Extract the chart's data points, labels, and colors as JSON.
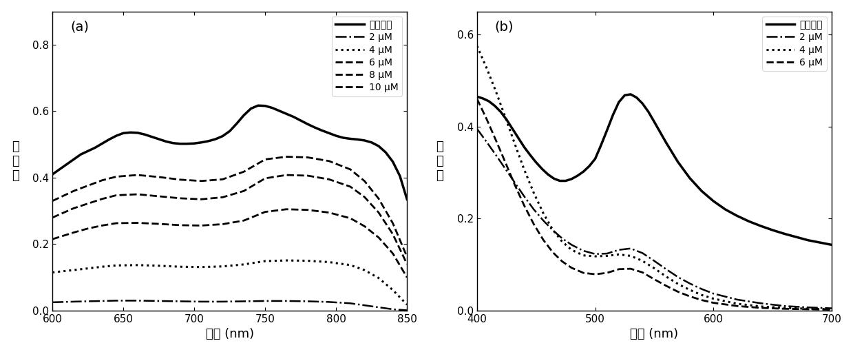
{
  "panel_a": {
    "xlabel": "波长 (nm)",
    "ylabel": "吸\n光\n值",
    "label": "(a)",
    "xlim": [
      600,
      850
    ],
    "ylim": [
      0.0,
      0.9
    ],
    "yticks": [
      0.0,
      0.2,
      0.4,
      0.6,
      0.8
    ],
    "xticks": [
      600,
      650,
      700,
      750,
      800,
      850
    ],
    "legend_labels": [
      "空白对照",
      "2 μM",
      "4 μM",
      "6 μM",
      "8 μM",
      "10 μM"
    ],
    "series": {
      "blank": {
        "x": [
          600,
          610,
          620,
          630,
          640,
          645,
          650,
          655,
          660,
          665,
          670,
          675,
          680,
          685,
          690,
          695,
          700,
          705,
          710,
          715,
          720,
          725,
          730,
          735,
          740,
          745,
          750,
          755,
          760,
          765,
          770,
          775,
          780,
          785,
          790,
          795,
          800,
          805,
          810,
          815,
          820,
          825,
          830,
          835,
          840,
          845,
          850
        ],
        "y": [
          0.41,
          0.44,
          0.47,
          0.49,
          0.515,
          0.526,
          0.534,
          0.536,
          0.535,
          0.53,
          0.523,
          0.516,
          0.509,
          0.504,
          0.502,
          0.502,
          0.503,
          0.506,
          0.51,
          0.516,
          0.525,
          0.54,
          0.563,
          0.588,
          0.608,
          0.617,
          0.616,
          0.61,
          0.601,
          0.592,
          0.583,
          0.572,
          0.561,
          0.551,
          0.542,
          0.534,
          0.526,
          0.52,
          0.517,
          0.515,
          0.512,
          0.506,
          0.495,
          0.476,
          0.448,
          0.405,
          0.335
        ],
        "linestyle": "solid",
        "linewidth": 2.5
      },
      "2uM": {
        "x": [
          600,
          615,
          625,
          635,
          645,
          660,
          675,
          690,
          705,
          720,
          735,
          750,
          765,
          780,
          795,
          810,
          820,
          830,
          840,
          850
        ],
        "y": [
          0.025,
          0.027,
          0.028,
          0.029,
          0.03,
          0.03,
          0.029,
          0.028,
          0.027,
          0.027,
          0.028,
          0.029,
          0.029,
          0.028,
          0.026,
          0.022,
          0.016,
          0.01,
          0.004,
          0.001
        ],
        "linestyle": "dashdot_fine",
        "linewidth": 1.8
      },
      "4uM": {
        "x": [
          600,
          615,
          625,
          635,
          645,
          660,
          675,
          690,
          705,
          720,
          735,
          750,
          765,
          780,
          795,
          810,
          820,
          830,
          840,
          850
        ],
        "y": [
          0.115,
          0.122,
          0.127,
          0.132,
          0.136,
          0.137,
          0.135,
          0.132,
          0.131,
          0.133,
          0.139,
          0.149,
          0.151,
          0.15,
          0.146,
          0.137,
          0.122,
          0.098,
          0.062,
          0.018
        ],
        "linestyle": "dotted_large",
        "linewidth": 2.0
      },
      "6uM": {
        "x": [
          600,
          615,
          625,
          635,
          645,
          660,
          675,
          690,
          705,
          720,
          735,
          750,
          765,
          780,
          795,
          810,
          820,
          830,
          840,
          850
        ],
        "y": [
          0.215,
          0.235,
          0.247,
          0.256,
          0.263,
          0.264,
          0.261,
          0.257,
          0.256,
          0.26,
          0.271,
          0.297,
          0.305,
          0.303,
          0.295,
          0.278,
          0.254,
          0.22,
          0.172,
          0.1
        ],
        "linestyle": "long_dashdot",
        "linewidth": 2.0
      },
      "8uM": {
        "x": [
          600,
          615,
          625,
          635,
          645,
          660,
          675,
          690,
          705,
          720,
          735,
          750,
          765,
          780,
          795,
          810,
          820,
          830,
          840,
          850
        ],
        "y": [
          0.28,
          0.308,
          0.322,
          0.336,
          0.347,
          0.35,
          0.344,
          0.338,
          0.335,
          0.341,
          0.36,
          0.398,
          0.408,
          0.406,
          0.395,
          0.373,
          0.342,
          0.295,
          0.23,
          0.14
        ],
        "linestyle": "dash_dot_dot",
        "linewidth": 2.0
      },
      "10uM": {
        "x": [
          600,
          615,
          625,
          635,
          645,
          660,
          675,
          690,
          705,
          720,
          735,
          750,
          765,
          780,
          795,
          810,
          820,
          830,
          840,
          850
        ],
        "y": [
          0.33,
          0.36,
          0.376,
          0.392,
          0.403,
          0.408,
          0.402,
          0.394,
          0.39,
          0.395,
          0.418,
          0.455,
          0.463,
          0.461,
          0.45,
          0.425,
          0.39,
          0.337,
          0.263,
          0.162
        ],
        "linestyle": "long_dash",
        "linewidth": 2.0
      }
    }
  },
  "panel_b": {
    "xlabel": "波长 (nm)",
    "ylabel": "吸\n光\n值",
    "label": "(b)",
    "xlim": [
      400,
      700
    ],
    "ylim": [
      0.0,
      0.65
    ],
    "yticks": [
      0.0,
      0.2,
      0.4,
      0.6
    ],
    "xticks": [
      400,
      500,
      600,
      700
    ],
    "legend_labels": [
      "空白对照",
      "2 μM",
      "4 μM",
      "6 μM"
    ],
    "series": {
      "blank": {
        "x": [
          400,
          405,
          410,
          415,
          420,
          425,
          430,
          435,
          440,
          445,
          450,
          455,
          460,
          465,
          470,
          475,
          480,
          485,
          490,
          495,
          500,
          505,
          510,
          515,
          520,
          525,
          530,
          535,
          540,
          545,
          550,
          560,
          570,
          580,
          590,
          600,
          610,
          620,
          630,
          640,
          650,
          660,
          670,
          680,
          690,
          700
        ],
        "y": [
          0.465,
          0.461,
          0.455,
          0.445,
          0.432,
          0.415,
          0.395,
          0.375,
          0.355,
          0.338,
          0.322,
          0.308,
          0.296,
          0.287,
          0.282,
          0.282,
          0.286,
          0.293,
          0.302,
          0.314,
          0.33,
          0.36,
          0.392,
          0.425,
          0.453,
          0.468,
          0.47,
          0.463,
          0.45,
          0.432,
          0.41,
          0.365,
          0.323,
          0.288,
          0.26,
          0.238,
          0.22,
          0.206,
          0.194,
          0.184,
          0.175,
          0.167,
          0.16,
          0.153,
          0.148,
          0.143
        ],
        "linestyle": "solid",
        "linewidth": 2.5
      },
      "2uM": {
        "x": [
          400,
          408,
          416,
          424,
          432,
          440,
          448,
          456,
          464,
          472,
          480,
          490,
          500,
          510,
          520,
          530,
          540,
          550,
          560,
          570,
          580,
          590,
          600,
          620,
          640,
          660,
          680,
          700
        ],
        "y": [
          0.395,
          0.367,
          0.338,
          0.308,
          0.278,
          0.248,
          0.22,
          0.196,
          0.175,
          0.157,
          0.143,
          0.13,
          0.123,
          0.124,
          0.132,
          0.135,
          0.125,
          0.108,
          0.09,
          0.073,
          0.059,
          0.047,
          0.037,
          0.024,
          0.016,
          0.01,
          0.007,
          0.005
        ],
        "linestyle": "dashdot_fine",
        "linewidth": 1.8
      },
      "4uM": {
        "x": [
          400,
          408,
          416,
          424,
          432,
          440,
          448,
          456,
          464,
          472,
          480,
          490,
          500,
          510,
          520,
          530,
          540,
          550,
          560,
          570,
          580,
          590,
          600,
          620,
          640,
          660,
          680,
          700
        ],
        "y": [
          0.575,
          0.528,
          0.476,
          0.42,
          0.362,
          0.306,
          0.256,
          0.212,
          0.176,
          0.15,
          0.132,
          0.12,
          0.118,
          0.119,
          0.122,
          0.119,
          0.108,
          0.092,
          0.074,
          0.058,
          0.045,
          0.034,
          0.026,
          0.015,
          0.009,
          0.006,
          0.004,
          0.003
        ],
        "linestyle": "dotted_large",
        "linewidth": 2.2
      },
      "6uM": {
        "x": [
          400,
          408,
          416,
          424,
          432,
          440,
          448,
          456,
          464,
          472,
          480,
          490,
          500,
          510,
          520,
          530,
          540,
          550,
          560,
          570,
          580,
          590,
          600,
          620,
          640,
          660,
          680,
          700
        ],
        "y": [
          0.46,
          0.417,
          0.37,
          0.322,
          0.273,
          0.228,
          0.188,
          0.154,
          0.127,
          0.107,
          0.093,
          0.082,
          0.079,
          0.082,
          0.09,
          0.091,
          0.083,
          0.068,
          0.054,
          0.041,
          0.031,
          0.023,
          0.017,
          0.01,
          0.006,
          0.004,
          0.003,
          0.002
        ],
        "linestyle": "long_dashdot",
        "linewidth": 2.0
      }
    }
  }
}
